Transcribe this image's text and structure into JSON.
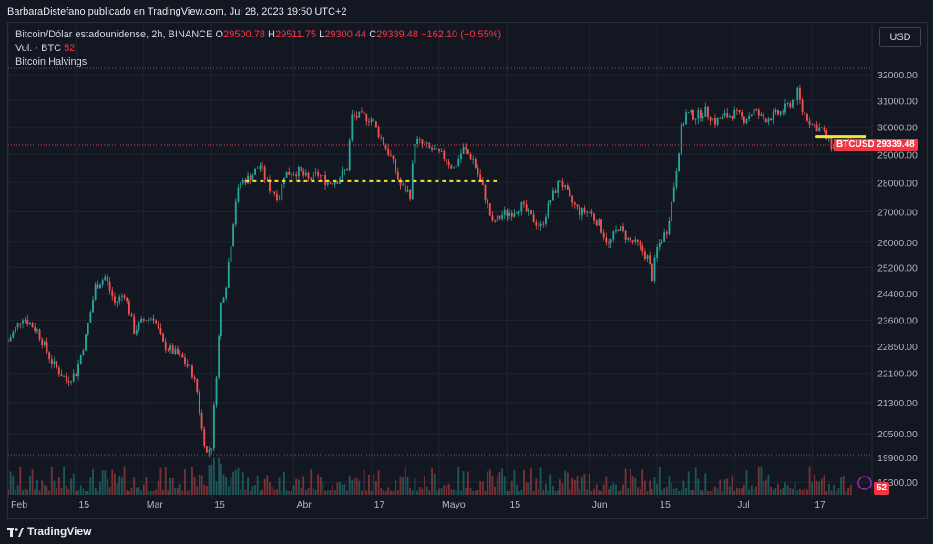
{
  "header": {
    "text": "BarbaraDistefano publicado en TradingView.com, Jul 28, 2023 19:50 UTC+2"
  },
  "legend": {
    "symbol": "Bitcoin/Dólar estadounidense, 2h, BINANCE",
    "o_label": "O",
    "o_value": "29500.78",
    "h_label": "H",
    "h_value": "29511.75",
    "l_label": "L",
    "l_value": "29300.44",
    "c_label": "C",
    "c_value": "29339.48",
    "change": "−162.10 (−0.55%)",
    "vol_label": "Vol. · BTC",
    "vol_value": "52",
    "indicator": "Bitcoin Halvings"
  },
  "currency_button": "USD",
  "price_tag": {
    "symbol": "BTCUSD",
    "value": "29339.48"
  },
  "volume_tag": "52",
  "footer": {
    "brand": "TradingView"
  },
  "colors": {
    "up": "#26a69a",
    "down": "#ef5350",
    "highlight": "#f5e52a",
    "last_price": "#f23645"
  },
  "chart_data": {
    "type": "candlestick",
    "interval": "2h",
    "y_scale": "log",
    "ylim": [
      19000,
      32300
    ],
    "y_ticks": [
      32000,
      31000,
      30000,
      29000,
      28000,
      27000,
      26000,
      25200,
      24400,
      23600,
      22850,
      22100,
      21300,
      20500,
      19900,
      19300
    ],
    "y_tick_labels": [
      "32000.00",
      "31000.00",
      "30000.00",
      "29000.00",
      "28000.00",
      "27000.00",
      "26000.00",
      "25200.00",
      "24400.00",
      "23600.00",
      "22850.00",
      "22100.00",
      "21300.00",
      "20500.00",
      "19900.00",
      "19300.00"
    ],
    "x_ticks": [
      {
        "label": "Feb",
        "day": 0
      },
      {
        "label": "15",
        "day": 14
      },
      {
        "label": "Mar",
        "day": 28
      },
      {
        "label": "15",
        "day": 42
      },
      {
        "label": "Abr",
        "day": 59
      },
      {
        "label": "17",
        "day": 75
      },
      {
        "label": "Mayo",
        "day": 89
      },
      {
        "label": "15",
        "day": 103
      },
      {
        "label": "Jun",
        "day": 120
      },
      {
        "label": "15",
        "day": 134
      },
      {
        "label": "Jul",
        "day": 150
      },
      {
        "label": "17",
        "day": 166
      }
    ],
    "x_range_days": [
      0,
      178
    ],
    "price_path": [
      [
        0,
        23000
      ],
      [
        3,
        23700
      ],
      [
        6,
        23300
      ],
      [
        9,
        22400
      ],
      [
        12,
        21900
      ],
      [
        14,
        22100
      ],
      [
        16,
        23100
      ],
      [
        18,
        24600
      ],
      [
        20,
        24900
      ],
      [
        22,
        24100
      ],
      [
        24,
        24400
      ],
      [
        26,
        23300
      ],
      [
        28,
        23600
      ],
      [
        30,
        23700
      ],
      [
        32,
        22900
      ],
      [
        34,
        22700
      ],
      [
        36,
        22500
      ],
      [
        38,
        22100
      ],
      [
        39,
        21600
      ],
      [
        40,
        20600
      ],
      [
        41,
        20000
      ],
      [
        42,
        20200
      ],
      [
        43,
        22100
      ],
      [
        44,
        24100
      ],
      [
        45,
        24700
      ],
      [
        46,
        26000
      ],
      [
        47,
        27400
      ],
      [
        48,
        28000
      ],
      [
        50,
        28200
      ],
      [
        52,
        28600
      ],
      [
        54,
        27800
      ],
      [
        56,
        27500
      ],
      [
        57,
        28300
      ],
      [
        60,
        28400
      ],
      [
        62,
        28100
      ],
      [
        64,
        28300
      ],
      [
        66,
        28000
      ],
      [
        68,
        28100
      ],
      [
        70,
        28500
      ],
      [
        71,
        30400
      ],
      [
        73,
        30400
      ],
      [
        75,
        30300
      ],
      [
        77,
        29600
      ],
      [
        79,
        28900
      ],
      [
        81,
        27900
      ],
      [
        83,
        27600
      ],
      [
        84,
        29500
      ],
      [
        86,
        29300
      ],
      [
        88,
        29100
      ],
      [
        90,
        28900
      ],
      [
        92,
        28500
      ],
      [
        94,
        29200
      ],
      [
        96,
        28800
      ],
      [
        98,
        27800
      ],
      [
        99,
        27200
      ],
      [
        100,
        26600
      ],
      [
        102,
        26900
      ],
      [
        104,
        27000
      ],
      [
        106,
        27200
      ],
      [
        108,
        26800
      ],
      [
        110,
        26500
      ],
      [
        112,
        27400
      ],
      [
        114,
        28100
      ],
      [
        116,
        27400
      ],
      [
        118,
        27000
      ],
      [
        120,
        27000
      ],
      [
        122,
        26600
      ],
      [
        124,
        25900
      ],
      [
        126,
        26500
      ],
      [
        128,
        26100
      ],
      [
        130,
        25900
      ],
      [
        132,
        25500
      ],
      [
        133,
        24900
      ],
      [
        134,
        25800
      ],
      [
        136,
        26400
      ],
      [
        137,
        27300
      ],
      [
        138,
        28500
      ],
      [
        139,
        29900
      ],
      [
        140,
        30500
      ],
      [
        142,
        30400
      ],
      [
        144,
        30600
      ],
      [
        146,
        30200
      ],
      [
        148,
        30400
      ],
      [
        150,
        30500
      ],
      [
        152,
        30300
      ],
      [
        154,
        30600
      ],
      [
        156,
        30300
      ],
      [
        158,
        30400
      ],
      [
        160,
        30600
      ],
      [
        162,
        31000
      ],
      [
        163,
        31300
      ],
      [
        164,
        30600
      ],
      [
        166,
        30100
      ],
      [
        168,
        29900
      ],
      [
        170,
        29300
      ],
      [
        172,
        29400
      ],
      [
        174,
        29339
      ]
    ],
    "annotations": [
      {
        "type": "dotted_line",
        "price": 28060,
        "from_day": 49,
        "to_day": 101,
        "color": "highlight"
      },
      {
        "type": "line",
        "price": 29650,
        "from_day": 167,
        "to_day": 177,
        "color": "highlight"
      },
      {
        "type": "last_price_line",
        "price": 29339.48
      }
    ],
    "volume_series": "BTC",
    "indicator": "Bitcoin Halvings"
  }
}
